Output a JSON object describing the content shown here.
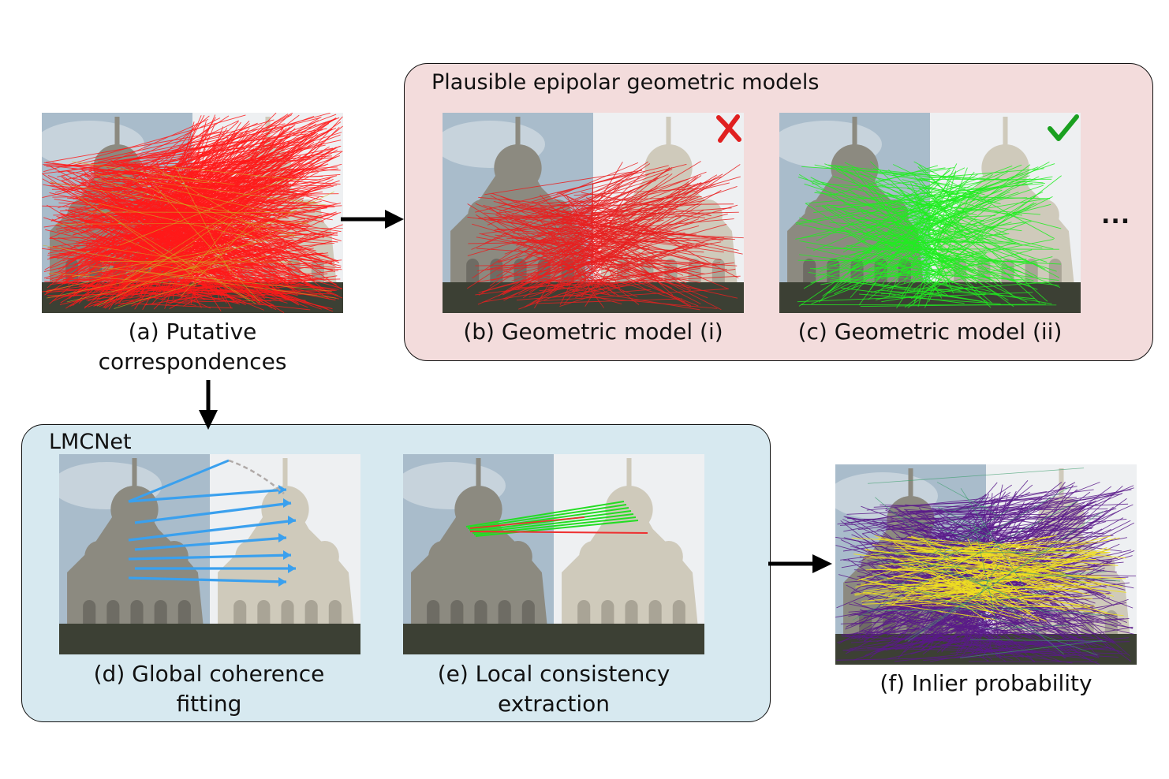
{
  "top_box": {
    "title": "Plausible epipolar geometric models"
  },
  "lmc_box": {
    "title": "LMCNet"
  },
  "captions": {
    "a_line1": "(a) Putative",
    "a_line2": "correspondences",
    "b": "(b) Geometric model (i)",
    "c": "(c) Geometric model (ii)",
    "d_line1": "(d) Global coherence",
    "d_line2": "fitting",
    "e_line1": "(e) Local consistency",
    "e_line2": "extraction",
    "f": "(f) Inlier probability"
  },
  "ellipsis": "...",
  "marks": {
    "b": "cross-icon",
    "c": "check-icon"
  },
  "colors": {
    "putative": "#ff1a1a",
    "wrong_model": "#e82020",
    "right_model": "#20ee20",
    "global_arrows": "#3aa0ee",
    "local_inlier": "#22dd22",
    "local_outlier": "#ee3030",
    "inlier_high": "#f0e020",
    "inlier_low": "#5a1a8a",
    "cross": "#e02020",
    "check": "#1aa020",
    "top_box_bg": "#f3dcdc",
    "lmc_box_bg": "#d7e9f0"
  }
}
